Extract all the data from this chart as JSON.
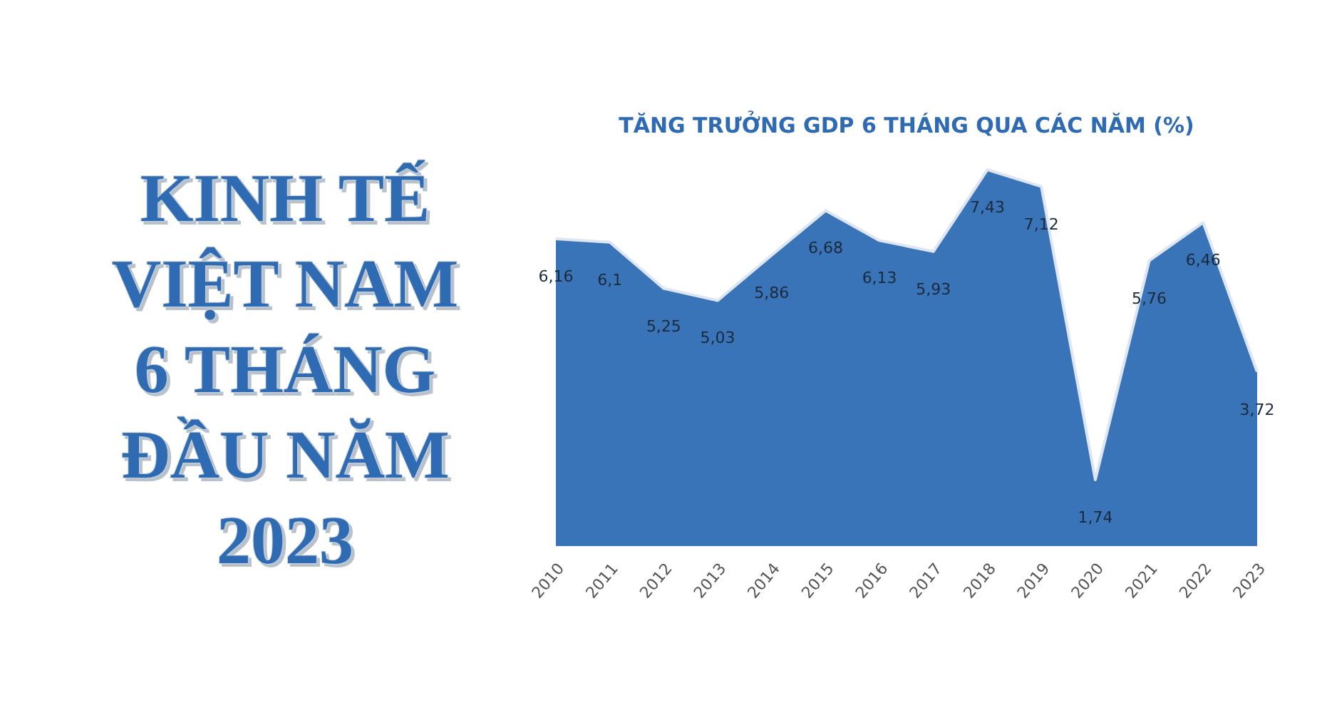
{
  "chart_data": {
    "type": "area",
    "title": "TĂNG TRƯỞNG GDP 6 THÁNG QUA CÁC NĂM (%)",
    "annotations": [
      "KINH TẾ VIỆT NAM 6 THÁNG ĐẦU NĂM 2023"
    ],
    "categories": [
      "2010",
      "2011",
      "2012",
      "2013",
      "2014",
      "2015",
      "2016",
      "2017",
      "2018",
      "2019",
      "2020",
      "2021",
      "2022",
      "2023"
    ],
    "values": [
      6.16,
      6.1,
      5.25,
      5.03,
      5.86,
      6.68,
      6.13,
      5.93,
      7.43,
      7.12,
      1.74,
      5.76,
      6.46,
      3.72
    ],
    "value_labels": [
      "6,16",
      "6,1",
      "5,25",
      "5,03",
      "5,86",
      "6,68",
      "6,13",
      "5,93",
      "7,43",
      "7,12",
      "1,74",
      "5,76",
      "6,46",
      "3,72"
    ],
    "color": "#3a74b8",
    "tick_labels": "x"
  }
}
